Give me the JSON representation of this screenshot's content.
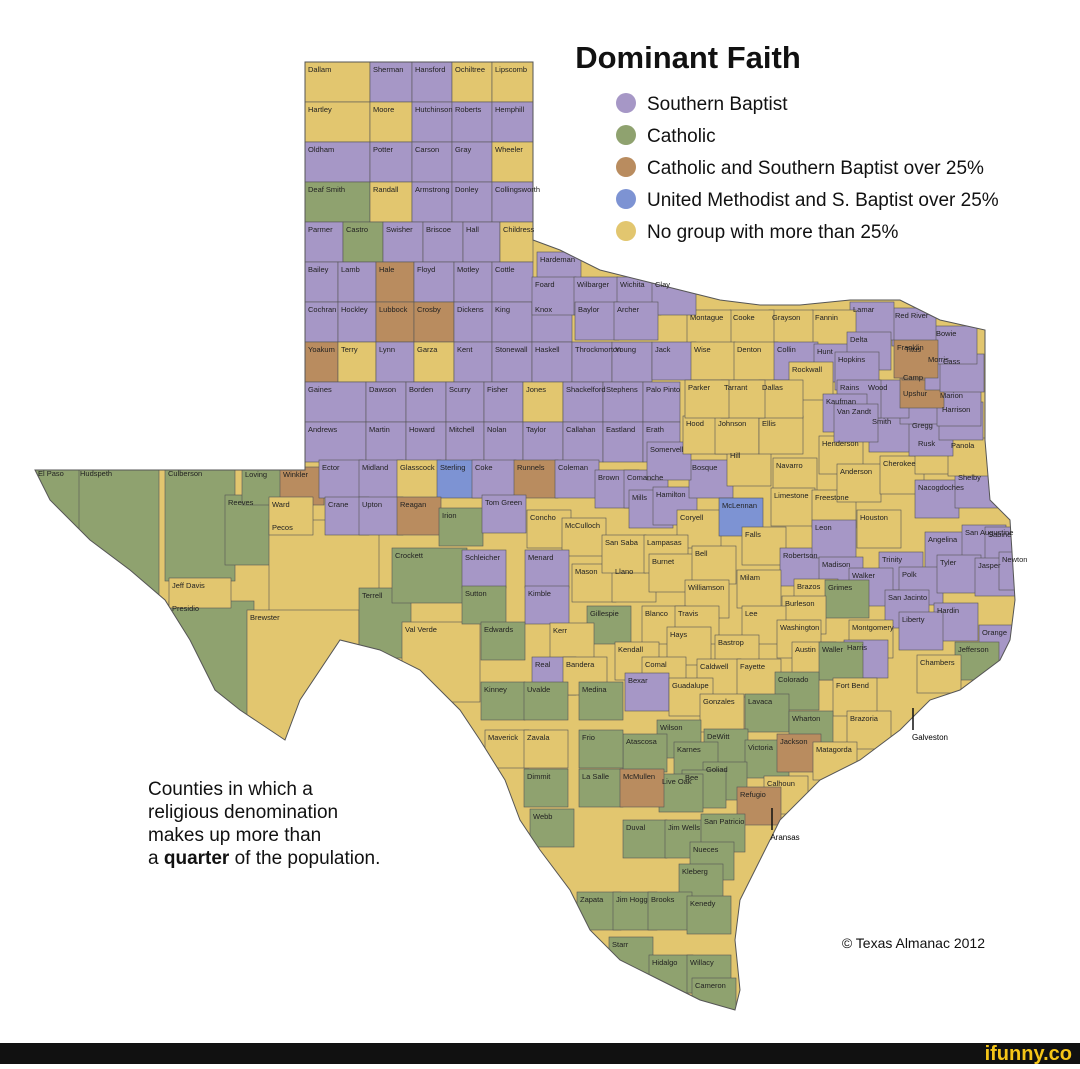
{
  "title": "Dominant Faith",
  "legend": [
    {
      "label": "Southern Baptist",
      "color": "#a697c6"
    },
    {
      "label": "Catholic",
      "color": "#8fa26f"
    },
    {
      "label": "Catholic and Southern Baptist over 25%",
      "color": "#b98c5f"
    },
    {
      "label": "United Methodist and S. Baptist over 25%",
      "color": "#7d93d3"
    },
    {
      "label": "No group with more than 25%",
      "color": "#e2c66f"
    }
  ],
  "note": {
    "line1": "Counties in which a",
    "line2": "religious denomination",
    "line3": "makes up more than",
    "line4_before": "a",
    "line4_bold": "quarter",
    "line4_after": "of the population."
  },
  "credit": "© Texas Almanac 2012",
  "watermark": "ifunny.co",
  "callouts": [
    "Galveston",
    "Aransas"
  ],
  "counties": [
    {
      "name": "Hudspeth",
      "color": "#8fa26f"
    },
    {
      "name": "El Paso",
      "color": "#8fa26f"
    },
    {
      "name": "Culberson",
      "color": "#8fa26f"
    },
    {
      "name": "Reeves",
      "color": "#8fa26f"
    },
    {
      "name": "Presidio",
      "color": "#8fa26f"
    },
    {
      "name": "Jeff Davis",
      "color": "#e2c66f"
    },
    {
      "name": "Pecos",
      "color": "#e2c66f"
    },
    {
      "name": "Brewster",
      "color": "#e2c66f"
    },
    {
      "name": "Terrell",
      "color": "#8fa26f"
    },
    {
      "name": "Crockett",
      "color": "#8fa26f"
    },
    {
      "name": "Val Verde",
      "color": "#e2c66f"
    },
    {
      "name": "Dallam",
      "color": "#e2c66f"
    },
    {
      "name": "Sherman",
      "color": "#a697c6"
    },
    {
      "name": "Hansford",
      "color": "#a697c6"
    },
    {
      "name": "Ochiltree",
      "color": "#e2c66f"
    },
    {
      "name": "Lipscomb",
      "color": "#e2c66f"
    },
    {
      "name": "Hartley",
      "color": "#e2c66f"
    },
    {
      "name": "Moore",
      "color": "#e2c66f"
    },
    {
      "name": "Hutchinson",
      "color": "#a697c6"
    },
    {
      "name": "Roberts",
      "color": "#a697c6"
    },
    {
      "name": "Hemphill",
      "color": "#a697c6"
    },
    {
      "name": "Oldham",
      "color": "#a697c6"
    },
    {
      "name": "Potter",
      "color": "#a697c6"
    },
    {
      "name": "Carson",
      "color": "#a697c6"
    },
    {
      "name": "Gray",
      "color": "#a697c6"
    },
    {
      "name": "Wheeler",
      "color": "#e2c66f"
    },
    {
      "name": "Deaf Smith",
      "color": "#8fa26f"
    },
    {
      "name": "Randall",
      "color": "#e2c66f"
    },
    {
      "name": "Armstrong",
      "color": "#a697c6"
    },
    {
      "name": "Donley",
      "color": "#a697c6"
    },
    {
      "name": "Collingsworth",
      "color": "#a697c6"
    },
    {
      "name": "Parmer",
      "color": "#a697c6"
    },
    {
      "name": "Castro",
      "color": "#8fa26f"
    },
    {
      "name": "Swisher",
      "color": "#a697c6"
    },
    {
      "name": "Briscoe",
      "color": "#a697c6"
    },
    {
      "name": "Hall",
      "color": "#a697c6"
    },
    {
      "name": "Childress",
      "color": "#e2c66f"
    },
    {
      "name": "Bailey",
      "color": "#a697c6"
    },
    {
      "name": "Lamb",
      "color": "#a697c6"
    },
    {
      "name": "Hale",
      "color": "#b98c5f"
    },
    {
      "name": "Floyd",
      "color": "#a697c6"
    },
    {
      "name": "Motley",
      "color": "#a697c6"
    },
    {
      "name": "Cottle",
      "color": "#a697c6"
    },
    {
      "name": "Cochran",
      "color": "#a697c6"
    },
    {
      "name": "Hockley",
      "color": "#a697c6"
    },
    {
      "name": "Lubbock",
      "color": "#b98c5f"
    },
    {
      "name": "Crosby",
      "color": "#b98c5f"
    },
    {
      "name": "Dickens",
      "color": "#a697c6"
    },
    {
      "name": "King",
      "color": "#a697c6"
    },
    {
      "name": "Knox",
      "color": "#a697c6"
    },
    {
      "name": "Yoakum",
      "color": "#b98c5f"
    },
    {
      "name": "Terry",
      "color": "#e2c66f"
    },
    {
      "name": "Lynn",
      "color": "#a697c6"
    },
    {
      "name": "Garza",
      "color": "#e2c66f"
    },
    {
      "name": "Kent",
      "color": "#a697c6"
    },
    {
      "name": "Stonewall",
      "color": "#a697c6"
    },
    {
      "name": "Haskell",
      "color": "#a697c6"
    },
    {
      "name": "Throckmorton",
      "color": "#a697c6"
    },
    {
      "name": "Young",
      "color": "#a697c6"
    },
    {
      "name": "Gaines",
      "color": "#a697c6"
    },
    {
      "name": "Dawson",
      "color": "#a697c6"
    },
    {
      "name": "Borden",
      "color": "#a697c6"
    },
    {
      "name": "Scurry",
      "color": "#a697c6"
    },
    {
      "name": "Fisher",
      "color": "#a697c6"
    },
    {
      "name": "Jones",
      "color": "#e2c66f"
    },
    {
      "name": "Shackelford",
      "color": "#a697c6"
    },
    {
      "name": "Stephens",
      "color": "#a697c6"
    },
    {
      "name": "Palo Pinto",
      "color": "#a697c6"
    },
    {
      "name": "Andrews",
      "color": "#a697c6"
    },
    {
      "name": "Martin",
      "color": "#a697c6"
    },
    {
      "name": "Howard",
      "color": "#a697c6"
    },
    {
      "name": "Mitchell",
      "color": "#a697c6"
    },
    {
      "name": "Nolan",
      "color": "#a697c6"
    },
    {
      "name": "Taylor",
      "color": "#a697c6"
    },
    {
      "name": "Callahan",
      "color": "#a697c6"
    },
    {
      "name": "Eastland",
      "color": "#a697c6"
    },
    {
      "name": "Erath",
      "color": "#a697c6"
    },
    {
      "name": "Loving",
      "color": "#8fa26f"
    },
    {
      "name": "Winkler",
      "color": "#b98c5f"
    },
    {
      "name": "Ector",
      "color": "#a697c6"
    },
    {
      "name": "Midland",
      "color": "#a697c6"
    },
    {
      "name": "Glasscock",
      "color": "#e2c66f"
    },
    {
      "name": "Sterling",
      "color": "#7d93d3"
    },
    {
      "name": "Coke",
      "color": "#a697c6"
    },
    {
      "name": "Runnels",
      "color": "#b98c5f"
    },
    {
      "name": "Coleman",
      "color": "#a697c6"
    },
    {
      "name": "Brown",
      "color": "#a697c6"
    },
    {
      "name": "Comanche",
      "color": "#a697c6"
    },
    {
      "name": "Ward",
      "color": "#e2c66f"
    },
    {
      "name": "Crane",
      "color": "#a697c6"
    },
    {
      "name": "Upton",
      "color": "#a697c6"
    },
    {
      "name": "Reagan",
      "color": "#b98c5f"
    },
    {
      "name": "Irion",
      "color": "#8fa26f"
    },
    {
      "name": "Tom Green",
      "color": "#a697c6"
    },
    {
      "name": "Concho",
      "color": "#e2c66f"
    },
    {
      "name": "McCulloch",
      "color": "#e2c66f"
    },
    {
      "name": "Mills",
      "color": "#a697c6"
    },
    {
      "name": "Hamilton",
      "color": "#a697c6"
    },
    {
      "name": "Coryell",
      "color": "#e2c66f"
    },
    {
      "name": "Bosque",
      "color": "#a697c6"
    },
    {
      "name": "Hill",
      "color": "#e2c66f"
    },
    {
      "name": "Somervell",
      "color": "#a697c6"
    },
    {
      "name": "Hood",
      "color": "#e2c66f"
    },
    {
      "name": "Johnson",
      "color": "#e2c66f"
    },
    {
      "name": "Ellis",
      "color": "#e2c66f"
    },
    {
      "name": "Navarro",
      "color": "#e2c66f"
    },
    {
      "name": "Limestone",
      "color": "#e2c66f"
    },
    {
      "name": "McLennan",
      "color": "#7d93d3"
    },
    {
      "name": "Freestone",
      "color": "#e2c66f"
    },
    {
      "name": "Henderson",
      "color": "#e2c66f"
    },
    {
      "name": "Anderson",
      "color": "#e2c66f"
    },
    {
      "name": "Cherokee",
      "color": "#e2c66f"
    },
    {
      "name": "Nacogdoches",
      "color": "#a697c6"
    },
    {
      "name": "Shelby",
      "color": "#a697c6"
    },
    {
      "name": "Rusk",
      "color": "#e2c66f"
    },
    {
      "name": "Panola",
      "color": "#e2c66f"
    },
    {
      "name": "Smith",
      "color": "#a697c6"
    },
    {
      "name": "Gregg",
      "color": "#a697c6"
    },
    {
      "name": "Harrison",
      "color": "#a697c6"
    },
    {
      "name": "Upshur",
      "color": "#a697c6"
    },
    {
      "name": "Marion",
      "color": "#a697c6"
    },
    {
      "name": "Wood",
      "color": "#a697c6"
    },
    {
      "name": "Camp",
      "color": "#b98c5f"
    },
    {
      "name": "Titus",
      "color": "#b98c5f"
    },
    {
      "name": "Morris",
      "color": "#a697c6"
    },
    {
      "name": "Cass",
      "color": "#a697c6"
    },
    {
      "name": "Bowie",
      "color": "#a697c6"
    },
    {
      "name": "Red River",
      "color": "#a697c6"
    },
    {
      "name": "Lamar",
      "color": "#a697c6"
    },
    {
      "name": "Fannin",
      "color": "#e2c66f"
    },
    {
      "name": "Grayson",
      "color": "#e2c66f"
    },
    {
      "name": "Cooke",
      "color": "#e2c66f"
    },
    {
      "name": "Montague",
      "color": "#e2c66f"
    },
    {
      "name": "Hardeman",
      "color": "#a697c6"
    },
    {
      "name": "Foard",
      "color": "#a697c6"
    },
    {
      "name": "Wilbarger",
      "color": "#a697c6"
    },
    {
      "name": "Wichita",
      "color": "#a697c6"
    },
    {
      "name": "Clay",
      "color": "#a697c6"
    },
    {
      "name": "Baylor",
      "color": "#a697c6"
    },
    {
      "name": "Archer",
      "color": "#a697c6"
    },
    {
      "name": "Jack",
      "color": "#a697c6"
    },
    {
      "name": "Wise",
      "color": "#e2c66f"
    },
    {
      "name": "Denton",
      "color": "#e2c66f"
    },
    {
      "name": "Collin",
      "color": "#a697c6"
    },
    {
      "name": "Hunt",
      "color": "#a697c6"
    },
    {
      "name": "Delta",
      "color": "#a697c6"
    },
    {
      "name": "Hopkins",
      "color": "#a697c6"
    },
    {
      "name": "Franklin",
      "color": "#b98c5f"
    },
    {
      "name": "Rockwall",
      "color": "#e2c66f"
    },
    {
      "name": "Rains",
      "color": "#a697c6"
    },
    {
      "name": "Kaufman",
      "color": "#a697c6"
    },
    {
      "name": "Van Zandt",
      "color": "#a697c6"
    },
    {
      "name": "Dallas",
      "color": "#e2c66f"
    },
    {
      "name": "Tarrant",
      "color": "#e2c66f"
    },
    {
      "name": "Parker",
      "color": "#e2c66f"
    },
    {
      "name": "Schleicher",
      "color": "#a697c6"
    },
    {
      "name": "Menard",
      "color": "#a697c6"
    },
    {
      "name": "Mason",
      "color": "#e2c66f"
    },
    {
      "name": "Llano",
      "color": "#e2c66f"
    },
    {
      "name": "San Saba",
      "color": "#e2c66f"
    },
    {
      "name": "Lampasas",
      "color": "#e2c66f"
    },
    {
      "name": "Burnet",
      "color": "#e2c66f"
    },
    {
      "name": "Bell",
      "color": "#e2c66f"
    },
    {
      "name": "Falls",
      "color": "#e2c66f"
    },
    {
      "name": "Robertson",
      "color": "#a697c6"
    },
    {
      "name": "Leon",
      "color": "#a697c6"
    },
    {
      "name": "Houston",
      "color": "#e2c66f"
    },
    {
      "name": "Angelina",
      "color": "#a697c6"
    },
    {
      "name": "San Augustine",
      "color": "#a697c6"
    },
    {
      "name": "Sabine",
      "color": "#a697c6"
    },
    {
      "name": "Trinity",
      "color": "#a697c6"
    },
    {
      "name": "Madison",
      "color": "#a697c6"
    },
    {
      "name": "Walker",
      "color": "#a697c6"
    },
    {
      "name": "Polk",
      "color": "#a697c6"
    },
    {
      "name": "Tyler",
      "color": "#a697c6"
    },
    {
      "name": "Jasper",
      "color": "#a697c6"
    },
    {
      "name": "Newton",
      "color": "#a697c6"
    },
    {
      "name": "Milam",
      "color": "#e2c66f"
    },
    {
      "name": "Williamson",
      "color": "#e2c66f"
    },
    {
      "name": "Brazos",
      "color": "#e2c66f"
    },
    {
      "name": "Grimes",
      "color": "#8fa26f"
    },
    {
      "name": "Burleson",
      "color": "#e2c66f"
    },
    {
      "name": "San Jacinto",
      "color": "#a697c6"
    },
    {
      "name": "Hardin",
      "color": "#a697c6"
    },
    {
      "name": "Liberty",
      "color": "#a697c6"
    },
    {
      "name": "Orange",
      "color": "#a697c6"
    },
    {
      "name": "Jefferson",
      "color": "#8fa26f"
    },
    {
      "name": "Chambers",
      "color": "#e2c66f"
    },
    {
      "name": "Sutton",
      "color": "#8fa26f"
    },
    {
      "name": "Kimble",
      "color": "#a697c6"
    },
    {
      "name": "Gillespie",
      "color": "#8fa26f"
    },
    {
      "name": "Blanco",
      "color": "#e2c66f"
    },
    {
      "name": "Travis",
      "color": "#e2c66f"
    },
    {
      "name": "Lee",
      "color": "#e2c66f"
    },
    {
      "name": "Washington",
      "color": "#e2c66f"
    },
    {
      "name": "Montgomery",
      "color": "#e2c66f"
    },
    {
      "name": "Harris",
      "color": "#a697c6"
    },
    {
      "name": "Austin",
      "color": "#e2c66f"
    },
    {
      "name": "Waller",
      "color": "#8fa26f"
    },
    {
      "name": "Hays",
      "color": "#e2c66f"
    },
    {
      "name": "Bastrop",
      "color": "#e2c66f"
    },
    {
      "name": "Edwards",
      "color": "#8fa26f"
    },
    {
      "name": "Kerr",
      "color": "#e2c66f"
    },
    {
      "name": "Kendall",
      "color": "#e2c66f"
    },
    {
      "name": "Real",
      "color": "#a697c6"
    },
    {
      "name": "Bandera",
      "color": "#e2c66f"
    },
    {
      "name": "Comal",
      "color": "#e2c66f"
    },
    {
      "name": "Caldwell",
      "color": "#e2c66f"
    },
    {
      "name": "Fayette",
      "color": "#e2c66f"
    },
    {
      "name": "Colorado",
      "color": "#8fa26f"
    },
    {
      "name": "Fort Bend",
      "color": "#e2c66f"
    },
    {
      "name": "Bexar",
      "color": "#a697c6"
    },
    {
      "name": "Guadalupe",
      "color": "#e2c66f"
    },
    {
      "name": "Gonzales",
      "color": "#e2c66f"
    },
    {
      "name": "Lavaca",
      "color": "#8fa26f"
    },
    {
      "name": "Wharton",
      "color": "#8fa26f"
    },
    {
      "name": "Brazoria",
      "color": "#e2c66f"
    },
    {
      "name": "Kinney",
      "color": "#8fa26f"
    },
    {
      "name": "Uvalde",
      "color": "#8fa26f"
    },
    {
      "name": "Medina",
      "color": "#8fa26f"
    },
    {
      "name": "Wilson",
      "color": "#8fa26f"
    },
    {
      "name": "Atascosa",
      "color": "#8fa26f"
    },
    {
      "name": "DeWitt",
      "color": "#8fa26f"
    },
    {
      "name": "Karnes",
      "color": "#8fa26f"
    },
    {
      "name": "Victoria",
      "color": "#8fa26f"
    },
    {
      "name": "Jackson",
      "color": "#b98c5f"
    },
    {
      "name": "Matagorda",
      "color": "#e2c66f"
    },
    {
      "name": "Maverick",
      "color": "#e2c66f"
    },
    {
      "name": "Zavala",
      "color": "#e2c66f"
    },
    {
      "name": "Frio",
      "color": "#8fa26f"
    },
    {
      "name": "Goliad",
      "color": "#8fa26f"
    },
    {
      "name": "Bee",
      "color": "#8fa26f"
    },
    {
      "name": "Live Oak",
      "color": "#8fa26f"
    },
    {
      "name": "Calhoun",
      "color": "#e2c66f"
    },
    {
      "name": "Refugio",
      "color": "#b98c5f"
    },
    {
      "name": "Dimmit",
      "color": "#8fa26f"
    },
    {
      "name": "La Salle",
      "color": "#8fa26f"
    },
    {
      "name": "McMullen",
      "color": "#b98c5f"
    },
    {
      "name": "Webb",
      "color": "#8fa26f"
    },
    {
      "name": "Duval",
      "color": "#8fa26f"
    },
    {
      "name": "Jim Wells",
      "color": "#8fa26f"
    },
    {
      "name": "San Patricio",
      "color": "#8fa26f"
    },
    {
      "name": "Nueces",
      "color": "#8fa26f"
    },
    {
      "name": "Kleberg",
      "color": "#8fa26f"
    },
    {
      "name": "Zapata",
      "color": "#8fa26f"
    },
    {
      "name": "Jim Hogg",
      "color": "#8fa26f"
    },
    {
      "name": "Brooks",
      "color": "#8fa26f"
    },
    {
      "name": "Kenedy",
      "color": "#8fa26f"
    },
    {
      "name": "Starr",
      "color": "#8fa26f"
    },
    {
      "name": "Hidalgo",
      "color": "#8fa26f"
    },
    {
      "name": "Willacy",
      "color": "#8fa26f"
    },
    {
      "name": "Cameron",
      "color": "#8fa26f"
    }
  ]
}
